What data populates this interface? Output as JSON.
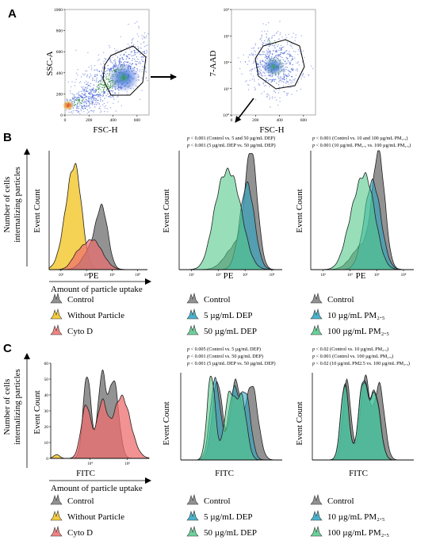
{
  "panels": {
    "A": "A",
    "B": "B",
    "C": "C"
  },
  "scatter": {
    "left": {
      "ylabel": "SSC-A",
      "xlabel": "FSC-H",
      "yticks": [
        "0",
        "200",
        "400",
        "600",
        "800",
        "1000"
      ],
      "xticks": [
        "0",
        "200",
        "400",
        "600"
      ]
    },
    "right": {
      "ylabel": "7-AAD",
      "xlabel": "FSC-H",
      "yticks": [
        "10⁰",
        "10¹",
        "10²",
        "10³",
        "10⁴"
      ],
      "xticks": [
        "0",
        "200",
        "400",
        "600"
      ]
    }
  },
  "side": {
    "B_top": "Number of cells",
    "B_bottom": "internalizing particles",
    "C_top": "Number of cells",
    "C_bottom": "internalizing particles",
    "uptake": "Amount of particle uptake"
  },
  "axis": {
    "event_count": "Event Count",
    "pe": "PE",
    "fitc": "FITC"
  },
  "ticks": {
    "logB": [
      "10²",
      "10⁴",
      "10⁶",
      "10⁸"
    ],
    "logC": [
      "10⁴",
      "10⁶"
    ],
    "yC": [
      "0",
      "10",
      "20",
      "30",
      "40",
      "50",
      "60"
    ]
  },
  "pvals": {
    "B_mid": [
      {
        "p": "p",
        "rest": " < 0.001 (Control vs. 5 and 50 µg/mL DEP)"
      },
      {
        "p": "p",
        "rest": " < 0.001 (5 µg/mL DEP vs. 50 µg/mL DEP)"
      }
    ],
    "B_right": [
      {
        "p": "p",
        "rest": " < 0.001 (Control vs. 10 and 100 µg/mL PM₂.₅)"
      },
      {
        "p": "p",
        "rest": " < 0.001 (10 µg/mL PM₂.₅ vs. 100 µg/mL PM₂.₅)"
      }
    ],
    "C_mid": [
      {
        "p": "p",
        "rest": " < 0.005 (Control vs. 5 µg/mL DEP)"
      },
      {
        "p": "p",
        "rest": " < 0.001 (Control vs. 50 µg/mL DEP)"
      },
      {
        "p": "p",
        "rest": " < 0.001 (5 µg/mL DEP vs. 50 µg/mL DEP)"
      }
    ],
    "C_right": [
      {
        "p": "p",
        "rest": " < 0.02 (Control vs. 10 µg/mL PM₂.₅)"
      },
      {
        "p": "p",
        "rest": " < 0.001 (Control vs. 100 µg/mL PM₂.₅)"
      },
      {
        "p": "p",
        "rest": " < 0.02 (10 µg/mL PM2.5 vs. 100 µg/mL PM₂.₅)"
      }
    ]
  },
  "legends": {
    "col1": [
      "Control",
      "Without Particle",
      "Cyto D"
    ],
    "col2": [
      "Control",
      "5 µg/mL DEP",
      "50 µg/mL DEP"
    ],
    "col3": [
      "Control",
      "10 µg/mL PM₂.₅",
      "100 µg/mL PM₂.₅"
    ]
  },
  "colors": {
    "control": "#7f7f7f",
    "without": "#f2c21b",
    "cytod": "#ee6e6e",
    "dep5": "#2aa6c4",
    "dep50": "#54c98a",
    "pm10": "#2aa6c4",
    "pm100": "#54c98a"
  },
  "chart_data": [
    {
      "type": "scatter",
      "id": "A-left",
      "xlabel": "FSC-H",
      "ylabel": "SSC-A",
      "xlim": [
        0,
        700
      ],
      "ylim": [
        0,
        1000
      ],
      "gate": "polygon around the main population centred near FSC-H 430, SSC-A 350"
    },
    {
      "type": "scatter",
      "id": "A-right",
      "xlabel": "FSC-H",
      "ylabel": "7-AAD",
      "xlim": [
        0,
        700
      ],
      "ylim": [
        0,
        4
      ],
      "gate": "polygon around the main population centred near FSC-H 430, 7-AAD 10^1.5"
    },
    {
      "type": "area",
      "id": "B-left",
      "xlabel": "PE",
      "ylabel": "Event Count",
      "scale": "log",
      "series": [
        {
          "name": "Without Particle",
          "peak_log": 1.5,
          "rel_height": 1.0
        },
        {
          "name": "Control",
          "peak_log": 3.5,
          "rel_height": 0.55
        },
        {
          "name": "Cyto D",
          "peak_log": 3.0,
          "rel_height": 0.28
        }
      ]
    },
    {
      "type": "area",
      "id": "B-mid",
      "xlabel": "PE",
      "ylabel": "Event Count",
      "scale": "log",
      "series": [
        {
          "name": "Control",
          "peak_log": 4.0,
          "rel_height": 1.0
        },
        {
          "name": "5 µg/mL DEP",
          "peak_log": 3.7,
          "rel_height": 0.78
        },
        {
          "name": "50 µg/mL DEP",
          "peak_log": 3.2,
          "rel_height": 0.72
        }
      ]
    },
    {
      "type": "area",
      "id": "B-right",
      "xlabel": "PE",
      "ylabel": "Event Count",
      "scale": "log",
      "series": [
        {
          "name": "Control",
          "peak_log": 4.0,
          "rel_height": 1.0
        },
        {
          "name": "10 µg/mL PM₂.₅",
          "peak_log": 3.8,
          "rel_height": 0.75
        },
        {
          "name": "100 µg/mL PM₂.₅",
          "peak_log": 3.5,
          "rel_height": 0.78
        }
      ]
    },
    {
      "type": "area",
      "id": "C-left",
      "xlabel": "FITC",
      "ylabel": "Event Count",
      "scale": "log",
      "ylim": [
        0,
        60
      ],
      "series": [
        {
          "name": "Control",
          "peaks_log": [
            4.1,
            4.6,
            5.1
          ],
          "peak_heights": [
            58,
            56,
            57
          ]
        },
        {
          "name": "Cyto D",
          "peaks_log": [
            4.1,
            4.6,
            5.3
          ],
          "peak_heights": [
            38,
            36,
            42
          ]
        },
        {
          "name": "Without Particle",
          "peaks_log": [
            2.5
          ],
          "peak_heights": [
            2
          ]
        }
      ]
    },
    {
      "type": "area",
      "id": "C-mid",
      "xlabel": "FITC",
      "ylabel": "Event Count",
      "scale": "log",
      "series": [
        {
          "name": "Control",
          "peaks_log": [
            3.8,
            4.5,
            5.1
          ],
          "peak_heights": [
            58,
            57,
            56
          ]
        },
        {
          "name": "5 µg/mL DEP",
          "peaks_log": [
            3.7,
            4.4,
            4.9
          ],
          "peak_heights": [
            60,
            52,
            50
          ]
        },
        {
          "name": "50 µg/mL DEP",
          "peaks_log": [
            3.6,
            4.3,
            4.8
          ],
          "peak_heights": [
            62,
            50,
            48
          ]
        }
      ]
    },
    {
      "type": "area",
      "id": "C-right",
      "xlabel": "FITC",
      "ylabel": "Event Count",
      "scale": "log",
      "series": [
        {
          "name": "Control",
          "peaks_log": [
            3.9,
            4.6,
            5.1
          ],
          "peak_heights": [
            57,
            59,
            55
          ]
        },
        {
          "name": "10 µg/mL PM₂.₅",
          "peaks_log": [
            3.8,
            4.5,
            5.0
          ],
          "peak_heights": [
            56,
            55,
            50
          ]
        },
        {
          "name": "100 µg/mL PM₂.₅",
          "peaks_log": [
            3.8,
            4.5,
            5.0
          ],
          "peak_heights": [
            55,
            54,
            48
          ]
        }
      ]
    }
  ]
}
